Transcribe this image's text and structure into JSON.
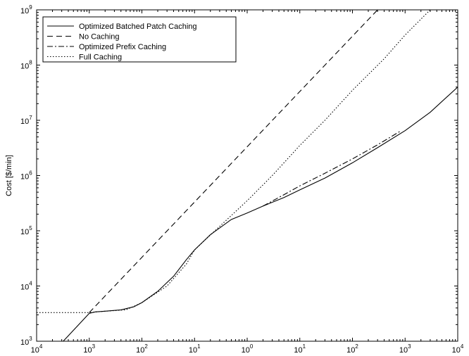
{
  "chart_data": {
    "type": "line",
    "title": "",
    "xlabel": "",
    "ylabel": "Cost [$/min]",
    "xscale": "log",
    "yscale": "log",
    "xlim": [
      0.0001,
      10000
    ],
    "ylim": [
      1000,
      1000000000
    ],
    "x_ticks": [
      0.0001,
      0.001,
      0.01,
      0.1,
      1,
      10,
      100,
      1000,
      10000
    ],
    "x_tick_labels": [
      {
        "base": "10",
        "exp": "4"
      },
      {
        "base": "10",
        "exp": "3"
      },
      {
        "base": "10",
        "exp": "2"
      },
      {
        "base": "10",
        "exp": "1"
      },
      {
        "base": "10",
        "exp": "0"
      },
      {
        "base": "10",
        "exp": "1"
      },
      {
        "base": "10",
        "exp": "2"
      },
      {
        "base": "10",
        "exp": "3"
      },
      {
        "base": "10",
        "exp": "4"
      }
    ],
    "y_ticks": [
      1000,
      10000,
      100000,
      1000000,
      10000000,
      100000000,
      1000000000
    ],
    "y_tick_labels": [
      {
        "base": "10",
        "exp": "3"
      },
      {
        "base": "10",
        "exp": "4"
      },
      {
        "base": "10",
        "exp": "5"
      },
      {
        "base": "10",
        "exp": "6"
      },
      {
        "base": "10",
        "exp": "7"
      },
      {
        "base": "10",
        "exp": "8"
      },
      {
        "base": "10",
        "exp": "9"
      }
    ],
    "grid": false,
    "legend_position": "top-left",
    "series": [
      {
        "name": "Optimized Batched Patch Caching",
        "style": "solid",
        "x": [
          0.00032,
          0.001,
          0.0013,
          0.002,
          0.004,
          0.007,
          0.01,
          0.02,
          0.04,
          0.07,
          0.1,
          0.2,
          0.5,
          1,
          2,
          5,
          10,
          30,
          100,
          300,
          1000,
          3000,
          10000
        ],
        "y": [
          1000,
          3200,
          3400,
          3500,
          3700,
          4200,
          5000,
          8000,
          15000,
          30000,
          45000,
          85000,
          160000,
          210000,
          280000,
          400000,
          550000,
          900000,
          1700000,
          3200000,
          6500000,
          14000000,
          40000000
        ]
      },
      {
        "name": "No Caching",
        "style": "dashed",
        "x": [
          0.001,
          300
        ],
        "y": [
          3300,
          1000000000
        ]
      },
      {
        "name": "Optimized Prefix Caching",
        "style": "dashdot",
        "x": [
          2,
          5,
          10,
          30,
          100,
          300,
          800
        ],
        "y": [
          280000,
          450000,
          650000,
          1100000,
          2000000,
          3600000,
          6300000
        ]
      },
      {
        "name": "Full Caching",
        "style": "dotted",
        "x": [
          0.0001,
          0.001,
          0.002,
          0.005,
          0.01,
          0.03,
          0.07,
          0.1,
          0.3,
          1,
          3,
          10,
          30,
          100,
          400,
          1000,
          3000
        ],
        "y": [
          3300,
          3300,
          3500,
          3700,
          5000,
          10000,
          25000,
          45000,
          120000,
          350000,
          1000000,
          3500000,
          10000000,
          35000000,
          130000000,
          350000000,
          1000000000
        ]
      }
    ]
  }
}
